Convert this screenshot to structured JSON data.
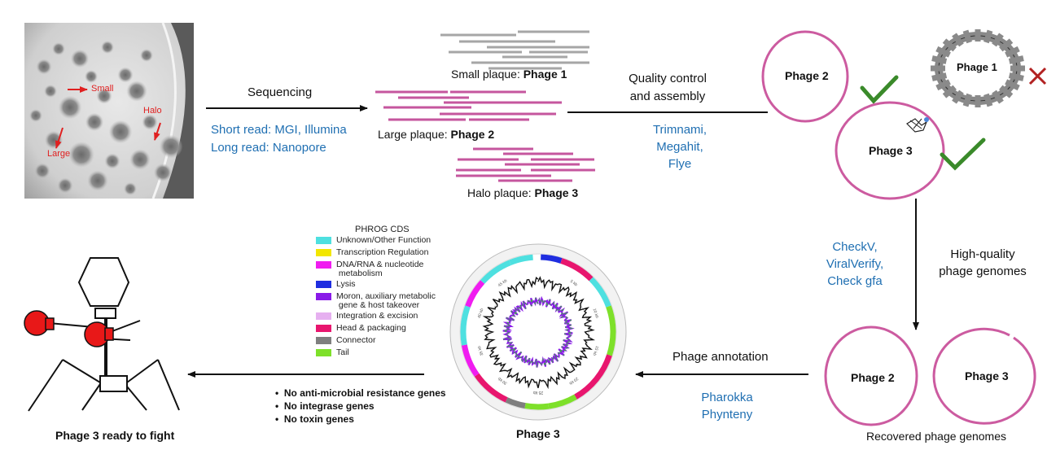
{
  "plate": {
    "small_label": "Small",
    "halo_label": "Halo",
    "large_label": "Large"
  },
  "sequencing": {
    "title": "Sequencing",
    "short_read": "Short read: MGI, Illumina",
    "long_read": "Long read: Nanopore"
  },
  "plaques": {
    "small_prefix": "Small plaque: ",
    "small_phage": "Phage 1",
    "large_prefix": "Large plaque: ",
    "large_phage": "Phage 2",
    "halo_prefix": "Halo plaque: ",
    "halo_phage": "Phage 3"
  },
  "assembly": {
    "title_line1": "Quality control",
    "title_line2": "and assembly",
    "tool1": "Trimnami,",
    "tool2": "Megahit,",
    "tool3": "Flye"
  },
  "assembled": {
    "phage2": "Phage 2",
    "phage1": "Phage 1",
    "phage3": "Phage 3"
  },
  "qc": {
    "tool1": "CheckV,",
    "tool2": "ViralVerify,",
    "tool3": "Check gfa",
    "label_line1": "High-quality",
    "label_line2": "phage genomes"
  },
  "recovered": {
    "phage2": "Phage 2",
    "phage3": "Phage 3",
    "caption": "Recovered phage genomes"
  },
  "annotation": {
    "title": "Phage annotation",
    "tool1": "Pharokka",
    "tool2": "Phynteny"
  },
  "legend": {
    "title": "PHROG CDS",
    "items": [
      {
        "label": "Unknown/Other Function",
        "color": "#4ee0e0"
      },
      {
        "label": "Transcription Regulation",
        "color": "#f2e600"
      },
      {
        "label": "DNA/RNA & nucleotide\nmetabolism",
        "color": "#f01cf0"
      },
      {
        "label": "Lysis",
        "color": "#1f2ee0"
      },
      {
        "label": "Moron, auxiliary metabolic\ngene & host takeover",
        "color": "#8a1be8"
      },
      {
        "label": "Integration & excision",
        "color": "#e6b0f0"
      },
      {
        "label": "Head & packaging",
        "color": "#e8166e"
      },
      {
        "label": "Connector",
        "color": "#7f7f7f"
      },
      {
        "label": "Tail",
        "color": "#7ee02a"
      }
    ]
  },
  "map": {
    "caption": "Phage 3",
    "ticks": [
      "5 kb",
      "10 kb",
      "15 kb",
      "20 kb",
      "25 kb",
      "30 kb",
      "35 kb",
      "40 kb",
      "45 kb"
    ]
  },
  "findings": [
    "No anti-microbial resistance genes",
    "No integrase genes",
    "No toxin genes"
  ],
  "final": {
    "caption": "Phage 3 ready to fight"
  },
  "colors": {
    "genome": "#cc5ba0",
    "read_gray": "#a6a6a6",
    "read_pink": "#c5569e",
    "check": "#3a8a2a",
    "cross": "#b22222",
    "glove": "#e81818",
    "tool_blue": "#1f6fb2"
  }
}
